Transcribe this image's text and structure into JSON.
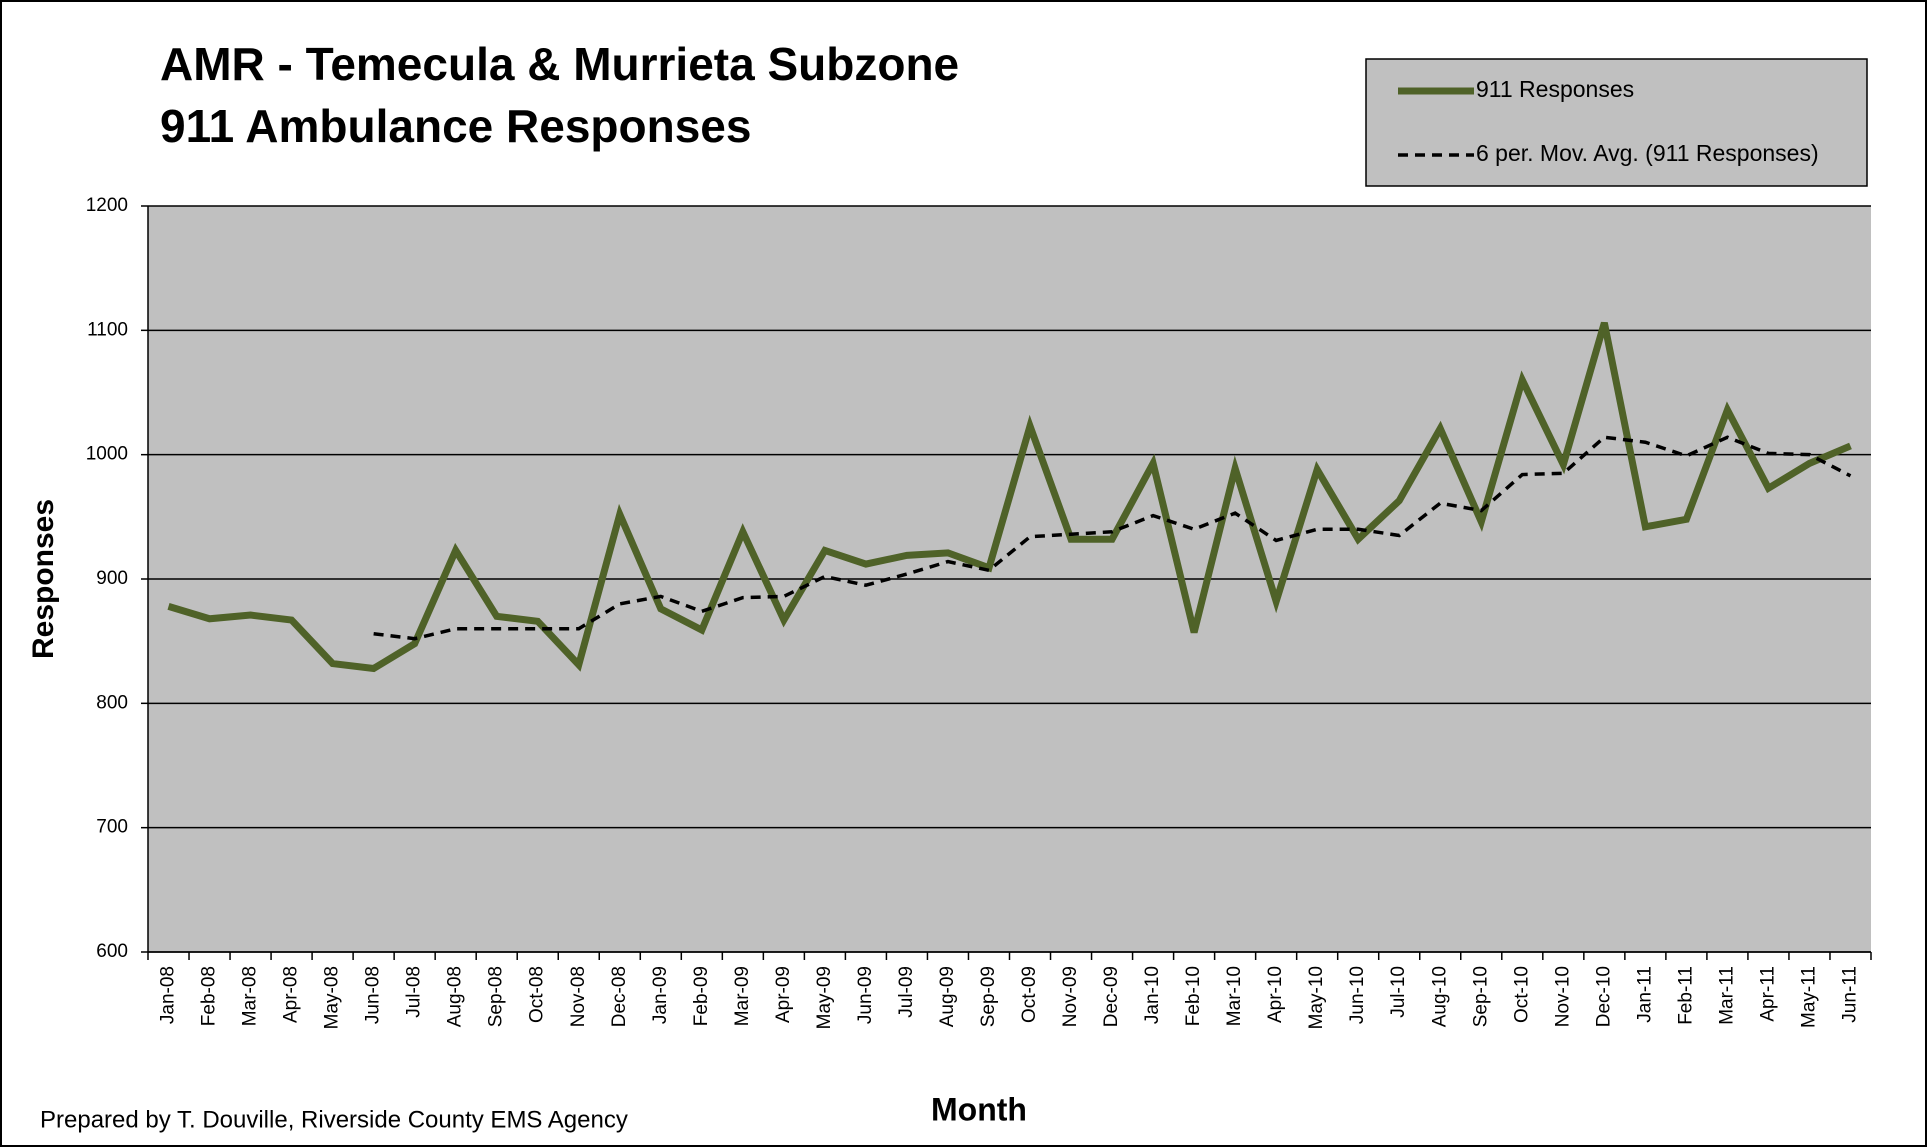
{
  "chart_data": {
    "type": "line",
    "title": "AMR - Temecula & Murrieta Subzone",
    "subtitle": "911 Ambulance Responses",
    "x_label": "Month",
    "y_label": "Responses",
    "annotations": [
      "Prepared by T. Douville, Riverside County EMS Agency"
    ],
    "categories": [
      "Jan-08",
      "Feb-08",
      "Mar-08",
      "Apr-08",
      "May-08",
      "Jun-08",
      "Jul-08",
      "Aug-08",
      "Sep-08",
      "Oct-08",
      "Nov-08",
      "Dec-08",
      "Jan-09",
      "Feb-09",
      "Mar-09",
      "Apr-09",
      "May-09",
      "Jun-09",
      "Jul-09",
      "Aug-09",
      "Sep-09",
      "Oct-09",
      "Nov-09",
      "Dec-09",
      "Jan-10",
      "Feb-10",
      "Mar-10",
      "Apr-10",
      "May-10",
      "Jun-10",
      "Jul-10",
      "Aug-10",
      "Sep-10",
      "Oct-10",
      "Nov-10",
      "Dec-10",
      "Jan-11",
      "Feb-11",
      "Mar-11",
      "Apr-11",
      "May-11",
      "Jun-11"
    ],
    "series": [
      {
        "name": "911 Responses",
        "color": "#4f6228",
        "dashed": false,
        "values": [
          878,
          868,
          871,
          867,
          832,
          828,
          848,
          923,
          870,
          866,
          831,
          952,
          876,
          859,
          938,
          867,
          923,
          912,
          919,
          921,
          909,
          1023,
          932,
          932,
          993,
          857,
          989,
          882,
          988,
          932,
          963,
          1021,
          946,
          1060,
          992,
          1106,
          942,
          948,
          1036,
          973,
          993,
          1007
        ]
      },
      {
        "name": "6 per. Mov. Avg. (911 Responses)",
        "color": "#000000",
        "dashed": true,
        "values": [
          null,
          null,
          null,
          null,
          null,
          856,
          852,
          860,
          860,
          860,
          860,
          880,
          886,
          874,
          885,
          886,
          902,
          895,
          904,
          914,
          907,
          934,
          936,
          938,
          951,
          940,
          953,
          931,
          940,
          940,
          935,
          961,
          955,
          984,
          985,
          1014,
          1010,
          999,
          1014,
          1001,
          1000,
          983
        ]
      }
    ],
    "ylim": [
      600,
      1200
    ],
    "yticks": [
      600,
      700,
      800,
      900,
      1000,
      1100,
      1200
    ],
    "grid": true,
    "legend": "top-right"
  }
}
